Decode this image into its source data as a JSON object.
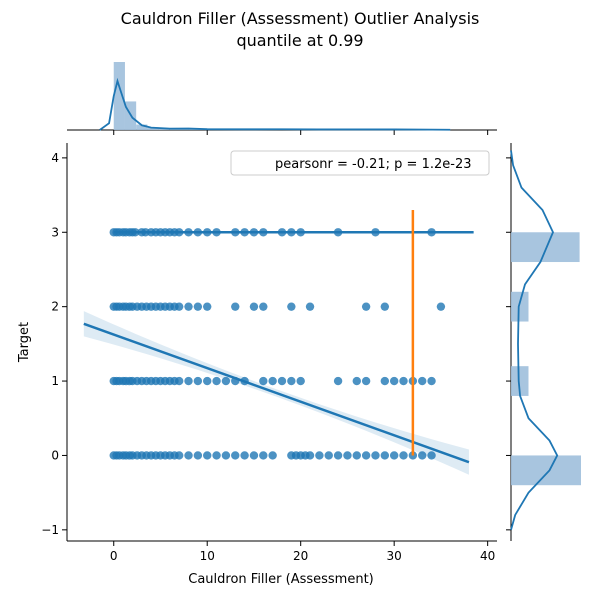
{
  "chart_data": {
    "type": "scatter",
    "title": "Cauldron Filler (Assessment) Outlier Analysis",
    "subtitle": "quantile at 0.99",
    "xlabel": "Cauldron Filler (Assessment)",
    "ylabel": "Target",
    "xlim": [
      -5,
      41
    ],
    "ylim": [
      -1.15,
      4.2
    ],
    "xticks": [
      0,
      10,
      20,
      30,
      40
    ],
    "yticks": [
      -1,
      0,
      1,
      2,
      3,
      4
    ],
    "legend": {
      "text": "pearsonr = -0.21; p = 1.2e-23",
      "position": "top-right"
    },
    "colors": {
      "points": "#1f77b4",
      "quantile_line": "#ff7f0e",
      "fit_line": "#1f77b4",
      "hist": "#9ebfdb"
    },
    "series": [
      {
        "y": 3,
        "x": [
          0,
          0.3,
          0.6,
          1,
          1.3,
          1.7,
          2,
          2.3,
          3,
          3.4,
          4,
          4.5,
          5,
          5.5,
          6,
          6.5,
          7,
          8,
          9,
          10,
          11,
          13,
          14,
          15,
          16,
          18,
          19,
          20,
          24,
          28,
          34
        ]
      },
      {
        "y": 2,
        "x": [
          0,
          0.3,
          0.6,
          1,
          1.3,
          1.7,
          2,
          2.5,
          3,
          3.5,
          4,
          4.5,
          5,
          5.5,
          6,
          6.5,
          7,
          8,
          9,
          10,
          13,
          15,
          16,
          19,
          21,
          27,
          29,
          35
        ]
      },
      {
        "y": 1,
        "x": [
          0,
          0.3,
          0.6,
          1,
          1.3,
          1.7,
          2,
          2.5,
          3,
          3.5,
          4,
          4.5,
          5,
          5.5,
          6,
          6.5,
          7,
          8,
          9,
          10,
          11,
          12,
          13,
          14,
          16,
          17,
          18,
          19,
          20,
          24,
          26,
          27,
          29,
          30,
          31,
          32,
          33,
          34
        ]
      },
      {
        "y": 0,
        "x": [
          0,
          0.3,
          0.6,
          1,
          1.3,
          1.7,
          2,
          2.5,
          3,
          3.5,
          4,
          4.5,
          5,
          5.5,
          6,
          6.5,
          7,
          8,
          9,
          10,
          11,
          12,
          13,
          14,
          15,
          16,
          17,
          19,
          19.5,
          20,
          20.5,
          21,
          22,
          23,
          24,
          25,
          26,
          27,
          28,
          29,
          30,
          31,
          32,
          33,
          34
        ]
      }
    ],
    "fit_lines": [
      {
        "name": "overall",
        "x": [
          -3.2,
          38
        ],
        "y": [
          1.77,
          -0.09
        ],
        "ci": [
          0.05,
          0.12
        ]
      },
      {
        "name": "target-3",
        "x": [
          0,
          38.5
        ],
        "y": [
          3,
          3
        ]
      }
    ],
    "quantile_line": {
      "x": 32,
      "y": [
        0,
        3.3
      ]
    },
    "marginal_x": {
      "bins": [
        0,
        1.2,
        2.4,
        3.6,
        4.8,
        6,
        8,
        12,
        16,
        20,
        24,
        28,
        32,
        36
      ],
      "density": [
        1.0,
        0.42,
        0.08,
        0.04,
        0.03,
        0.02,
        0.015,
        0.01,
        0.01,
        0.008,
        0.008,
        0.006,
        0.006
      ],
      "kde": [
        [
          -1.5,
          0
        ],
        [
          -0.5,
          0.1
        ],
        [
          0,
          0.5
        ],
        [
          0.4,
          0.72
        ],
        [
          0.8,
          0.55
        ],
        [
          1.3,
          0.34
        ],
        [
          2,
          0.18
        ],
        [
          3,
          0.07
        ],
        [
          4,
          0.035
        ],
        [
          6,
          0.02
        ],
        [
          8,
          0.022
        ],
        [
          10,
          0.012
        ],
        [
          14,
          0.01
        ],
        [
          18,
          0.011
        ],
        [
          22,
          0.008
        ],
        [
          26,
          0.008
        ],
        [
          30,
          0.008
        ],
        [
          34,
          0.006
        ],
        [
          36,
          0.004
        ]
      ]
    },
    "marginal_y": {
      "bins": [
        [
          -0.4,
          0.0
        ],
        [
          0.8,
          1.2
        ],
        [
          1.8,
          2.2
        ],
        [
          2.6,
          3.0
        ]
      ],
      "density": [
        1.0,
        0.25,
        0.25,
        0.98
      ],
      "kde": [
        [
          -1.0,
          0.0
        ],
        [
          -0.8,
          0.06
        ],
        [
          -0.5,
          0.25
        ],
        [
          -0.2,
          0.55
        ],
        [
          0.0,
          0.66
        ],
        [
          0.2,
          0.55
        ],
        [
          0.5,
          0.25
        ],
        [
          0.8,
          0.13
        ],
        [
          1.0,
          0.11
        ],
        [
          1.5,
          0.1
        ],
        [
          2.0,
          0.11
        ],
        [
          2.3,
          0.2
        ],
        [
          2.6,
          0.42
        ],
        [
          3.0,
          0.6
        ],
        [
          3.3,
          0.45
        ],
        [
          3.6,
          0.15
        ],
        [
          3.9,
          0.03
        ],
        [
          4.1,
          0.0
        ]
      ]
    }
  }
}
